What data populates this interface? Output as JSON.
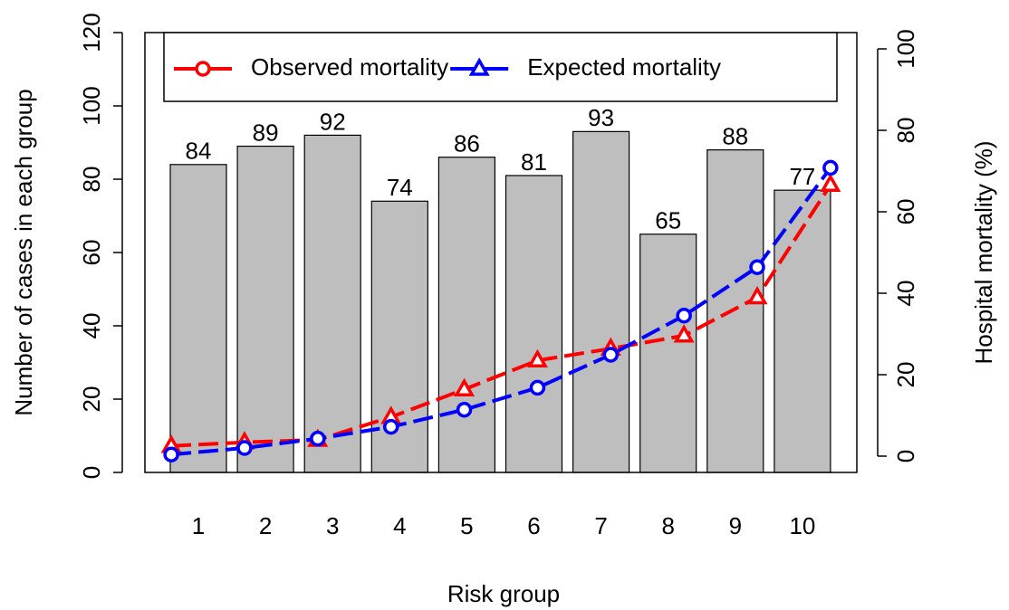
{
  "chart_data": {
    "type": "bar",
    "xlabel": "Risk group",
    "ylabel": "Number of cases in each group",
    "y2label": "Hospital mortality (%)",
    "categories": [
      "1",
      "2",
      "3",
      "4",
      "5",
      "6",
      "7",
      "8",
      "9",
      "10"
    ],
    "values": [
      84,
      89,
      92,
      74,
      86,
      81,
      93,
      65,
      88,
      77
    ],
    "color": "#bebebe",
    "ylim": [
      0,
      120
    ],
    "yticks": [
      0,
      20,
      40,
      60,
      80,
      100,
      120
    ],
    "y2lim": [
      -4,
      104
    ],
    "y2ticks": [
      0,
      20,
      40,
      60,
      80,
      100
    ],
    "series": [
      {
        "name": "Observed mortality",
        "color": "#ff0000",
        "marker": "triangle",
        "legend_marker": "circle",
        "axis": "y2",
        "values": [
          2.5,
          3.4,
          4.0,
          9.6,
          16.4,
          23.5,
          26.4,
          29.6,
          39.0,
          66.6
        ]
      },
      {
        "name": "Expected mortality",
        "color": "#0000ff",
        "marker": "circle",
        "legend_marker": "triangle",
        "axis": "y2",
        "values": [
          0.4,
          2.0,
          4.3,
          7.2,
          11.4,
          16.8,
          24.9,
          34.5,
          46.4,
          70.8
        ]
      }
    ],
    "legend": "top"
  }
}
